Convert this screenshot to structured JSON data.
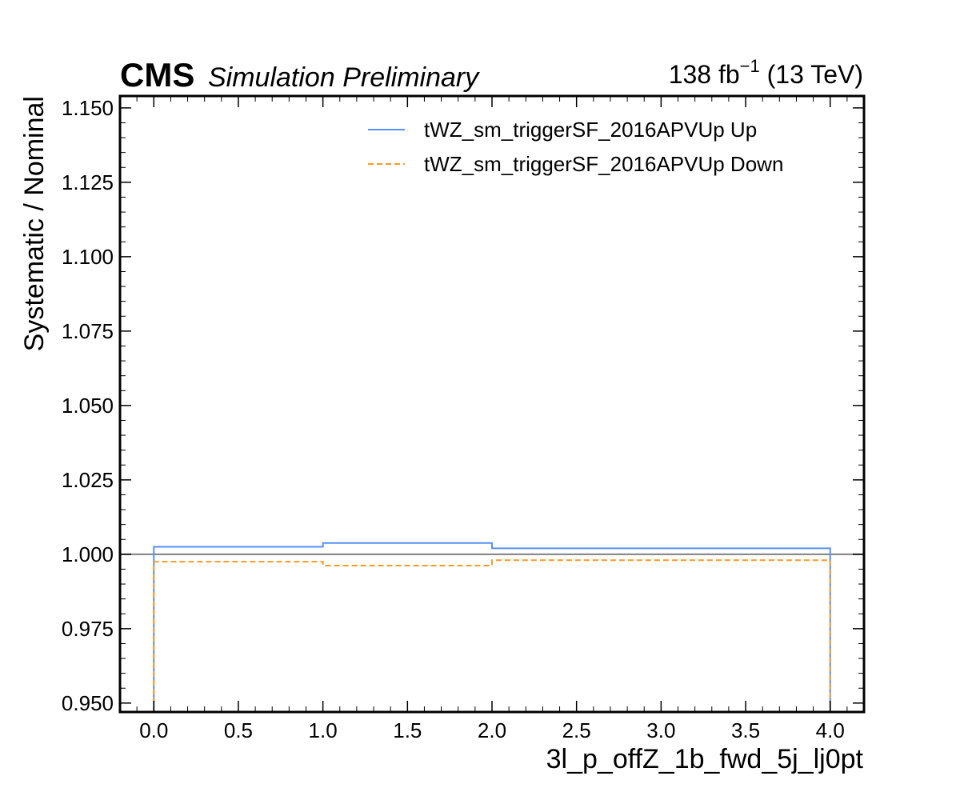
{
  "header": {
    "experiment": "CMS",
    "status": "Simulation Preliminary",
    "lumi_value": "138 fb",
    "lumi_exponent": "−1",
    "lumi_energy": " (13 TeV)"
  },
  "chart_data": {
    "type": "line",
    "xlabel": "3l_p_offZ_1b_fwd_5j_lj0pt",
    "ylabel": "Systematic / Nominal",
    "xlim": [
      -0.2,
      4.2
    ],
    "ylim": [
      0.947,
      1.154
    ],
    "xticks": [
      0.0,
      0.5,
      1.0,
      1.5,
      2.0,
      2.5,
      3.0,
      3.5,
      4.0
    ],
    "xtick_labels": [
      "0.0",
      "0.5",
      "1.0",
      "1.5",
      "2.0",
      "2.5",
      "3.0",
      "3.5",
      "4.0"
    ],
    "yticks": [
      0.95,
      0.975,
      1.0,
      1.025,
      1.05,
      1.075,
      1.1,
      1.125,
      1.15
    ],
    "ytick_labels": [
      "0.950",
      "0.975",
      "1.000",
      "1.025",
      "1.050",
      "1.075",
      "1.100",
      "1.125",
      "1.150"
    ],
    "reference_line": 1.0,
    "bin_edges": [
      0,
      1,
      2,
      4
    ],
    "series": [
      {
        "name": "tWZ_sm_triggerSF_2016APVUp Up",
        "values": [
          1.0025,
          1.0038,
          1.002
        ],
        "color": "#5790fc",
        "dash": "solid"
      },
      {
        "name": "tWZ_sm_triggerSF_2016APVUp Down",
        "values": [
          0.9975,
          0.9962,
          0.998
        ],
        "color": "#f89c20",
        "dash": "dashed"
      }
    ],
    "legend_placement": "top-right",
    "grid": false
  }
}
